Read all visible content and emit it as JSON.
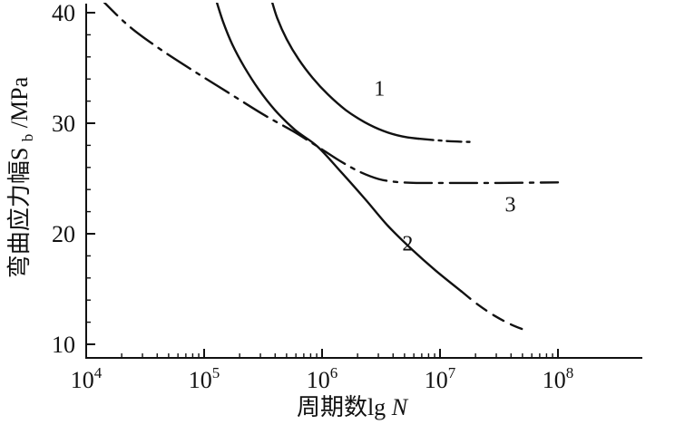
{
  "figure": {
    "background": "#ffffff",
    "ink": "#111111"
  },
  "chart_data": {
    "type": "line",
    "title": "",
    "xlabel": "周期数lgN",
    "ylabel": "弯曲应力幅Sb/MPa",
    "xlabel_parts": {
      "prefix": "周期数lg",
      "var": "N"
    },
    "ylabel_parts": {
      "main": "弯曲应力幅S",
      "sub": "b",
      "unit": "/MPa"
    },
    "x_axis": {
      "scale": "log",
      "min_exp": 4,
      "max_exp": 8,
      "tick_base": "10",
      "tick_exponents": [
        "4",
        "5",
        "6",
        "7",
        "8"
      ],
      "minor_ticks": true
    },
    "y_axis": {
      "min": 10,
      "max": 40,
      "major_ticks": [
        "40",
        "30",
        "20",
        "10"
      ],
      "minor_step": 2,
      "unit": "MPa"
    },
    "grid": false,
    "legend": false,
    "series": [
      {
        "name": "1",
        "label_pos": [
          6.44,
          32.5
        ],
        "segments": [
          {
            "style": "solid",
            "points": [
              [
                5.57,
                41.2
              ],
              [
                5.62,
                39.5
              ],
              [
                5.7,
                37.6
              ],
              [
                5.8,
                35.8
              ],
              [
                5.92,
                34.1
              ],
              [
                6.05,
                32.6
              ],
              [
                6.2,
                31.2
              ],
              [
                6.36,
                30.1
              ],
              [
                6.52,
                29.3
              ],
              [
                6.68,
                28.8
              ],
              [
                6.82,
                28.6
              ]
            ]
          },
          {
            "style": "dashdot",
            "points": [
              [
                6.82,
                28.6
              ],
              [
                6.98,
                28.45
              ],
              [
                7.12,
                28.35
              ],
              [
                7.27,
                28.3
              ]
            ]
          }
        ]
      },
      {
        "name": "2",
        "label_pos": [
          6.68,
          18.5
        ],
        "segments": [
          {
            "style": "solid",
            "points": [
              [
                5.1,
                41.2
              ],
              [
                5.16,
                39.2
              ],
              [
                5.24,
                37.1
              ],
              [
                5.34,
                35.1
              ],
              [
                5.46,
                33.1
              ],
              [
                5.6,
                31.2
              ],
              [
                5.77,
                29.4
              ],
              [
                5.96,
                27.9
              ],
              [
                6.16,
                25.6
              ],
              [
                6.36,
                23.2
              ],
              [
                6.56,
                20.7
              ],
              [
                6.76,
                18.6
              ],
              [
                6.96,
                16.7
              ],
              [
                7.18,
                14.8
              ]
            ]
          },
          {
            "style": "dashed",
            "points": [
              [
                7.18,
                14.8
              ],
              [
                7.32,
                13.6
              ],
              [
                7.46,
                12.6
              ],
              [
                7.6,
                11.8
              ],
              [
                7.74,
                11.2
              ]
            ]
          }
        ]
      },
      {
        "name": "3",
        "label_pos": [
          7.55,
          22.0
        ],
        "segments": [
          {
            "style": "dashdot-long",
            "points": [
              [
                4.1,
                41.5
              ],
              [
                4.35,
                38.9
              ],
              [
                4.6,
                36.9
              ],
              [
                4.9,
                34.8
              ],
              [
                5.2,
                32.8
              ],
              [
                5.5,
                30.8
              ],
              [
                5.75,
                29.3
              ],
              [
                5.96,
                27.9
              ],
              [
                6.15,
                26.6
              ],
              [
                6.32,
                25.6
              ],
              [
                6.48,
                24.95
              ],
              [
                6.62,
                24.7
              ],
              [
                6.8,
                24.6
              ],
              [
                7.1,
                24.6
              ],
              [
                7.5,
                24.6
              ],
              [
                8.0,
                24.65
              ]
            ]
          }
        ]
      }
    ]
  }
}
